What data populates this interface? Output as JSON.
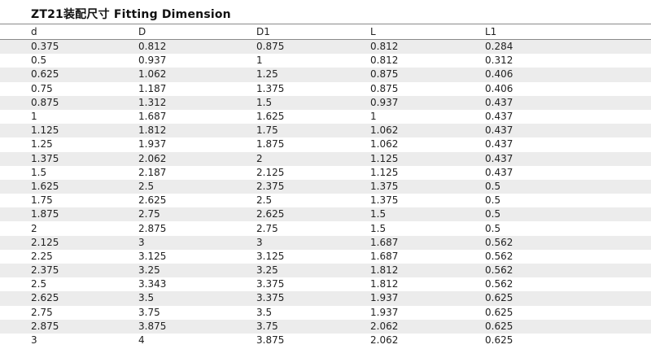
{
  "page": {
    "title": "ZT21装配尺寸 Fitting Dimension"
  },
  "colors": {
    "stripe": "#ececec",
    "rule_line": "#8a8a8a",
    "text": "#222222",
    "background": "#ffffff"
  },
  "table": {
    "columns": [
      "d",
      "D",
      "D1",
      "L",
      "L1"
    ],
    "rows": [
      [
        "0.375",
        "0.812",
        "0.875",
        "0.812",
        "0.284"
      ],
      [
        "0.5",
        "0.937",
        "1",
        "0.812",
        "0.312"
      ],
      [
        "0.625",
        "1.062",
        "1.25",
        "0.875",
        "0.406"
      ],
      [
        "0.75",
        "1.187",
        "1.375",
        "0.875",
        "0.406"
      ],
      [
        "0.875",
        "1.312",
        "1.5",
        "0.937",
        "0.437"
      ],
      [
        "1",
        "1.687",
        "1.625",
        "1",
        "0.437"
      ],
      [
        "1.125",
        "1.812",
        "1.75",
        "1.062",
        "0.437"
      ],
      [
        "1.25",
        "1.937",
        "1.875",
        "1.062",
        "0.437"
      ],
      [
        "1.375",
        "2.062",
        "2",
        "1.125",
        "0.437"
      ],
      [
        "1.5",
        "2.187",
        "2.125",
        "1.125",
        "0.437"
      ],
      [
        "1.625",
        "2.5",
        "2.375",
        "1.375",
        "0.5"
      ],
      [
        "1.75",
        "2.625",
        "2.5",
        "1.375",
        "0.5"
      ],
      [
        "1.875",
        "2.75",
        "2.625",
        "1.5",
        "0.5"
      ],
      [
        "2",
        "2.875",
        "2.75",
        "1.5",
        "0.5"
      ],
      [
        "2.125",
        "3",
        "3",
        "1.687",
        "0.562"
      ],
      [
        "2.25",
        "3.125",
        "3.125",
        "1.687",
        "0.562"
      ],
      [
        "2.375",
        "3.25",
        "3.25",
        "1.812",
        "0.562"
      ],
      [
        "2.5",
        "3.343",
        "3.375",
        "1.812",
        "0.562"
      ],
      [
        "2.625",
        "3.5",
        "3.375",
        "1.937",
        "0.625"
      ],
      [
        "2.75",
        "3.75",
        "3.5",
        "1.937",
        "0.625"
      ],
      [
        "2.875",
        "3.875",
        "3.75",
        "2.062",
        "0.625"
      ],
      [
        "3",
        "4",
        "3.875",
        "2.062",
        "0.625"
      ]
    ]
  }
}
